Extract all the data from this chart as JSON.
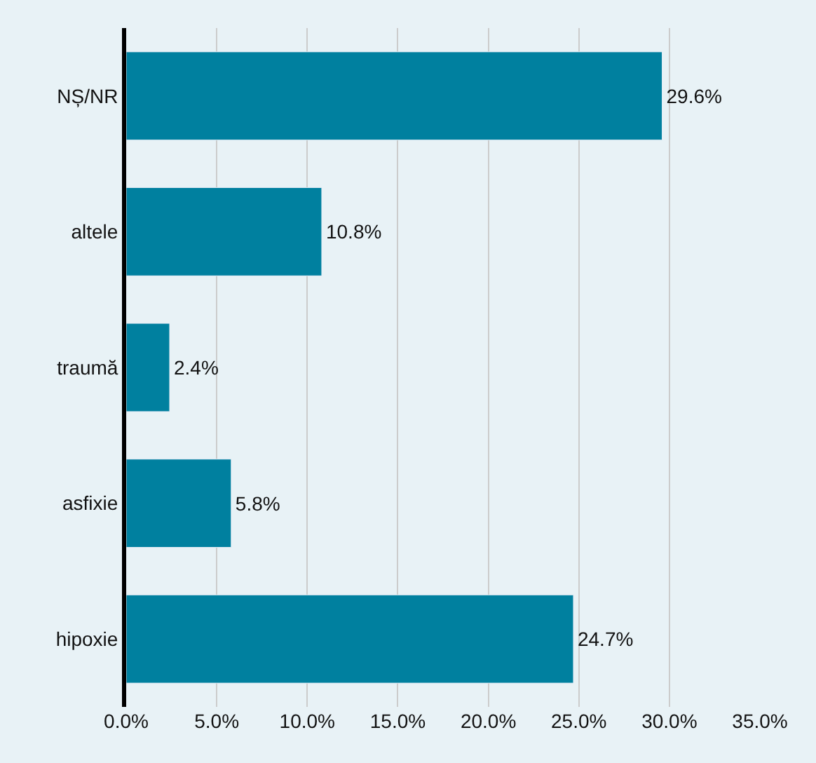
{
  "chart_data": {
    "type": "bar",
    "orientation": "horizontal",
    "categories": [
      "NȘ/NR",
      "altele",
      "traumă",
      "asfixie",
      "hipoxie"
    ],
    "values": [
      29.6,
      10.8,
      2.4,
      5.8,
      24.7
    ],
    "value_labels": [
      "29.6%",
      "10.8%",
      "2.4%",
      "5.8%",
      "24.7%"
    ],
    "color": "#00809f",
    "xlim": [
      0,
      35
    ],
    "xticks": [
      {
        "value": 0,
        "label": "0.0%"
      },
      {
        "value": 5,
        "label": "5.0%"
      },
      {
        "value": 10,
        "label": "10.0%"
      },
      {
        "value": 15,
        "label": "15.0%"
      },
      {
        "value": 20,
        "label": "20.0%"
      },
      {
        "value": 25,
        "label": "25.0%"
      },
      {
        "value": 30,
        "label": "30.0%"
      },
      {
        "value": 35,
        "label": "35.0%"
      }
    ],
    "grid": "x"
  }
}
